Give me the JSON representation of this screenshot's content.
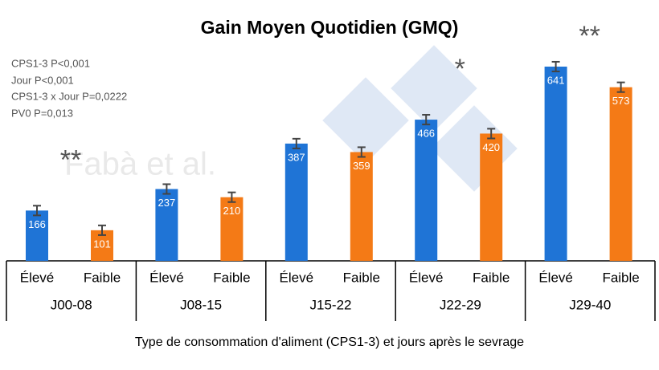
{
  "chart_data": {
    "type": "bar",
    "title": "Gain Moyen Quotidien (GMQ)",
    "x_label": "Type de consommation d'aliment (CPS1-3) et jours après le sevrage",
    "notes": [
      "CPS1-3 P<0,001",
      "Jour P<0,001",
      "CPS1-3 x Jour P=0,0222",
      "PV0 P=0,013"
    ],
    "watermark": "Fabà et al.",
    "categories": [
      "J00-08",
      "J08-15",
      "J15-22",
      "J22-29",
      "J29-40"
    ],
    "annotations": [
      "**",
      null,
      null,
      "*",
      "**"
    ],
    "series": [
      {
        "name": "Élevé",
        "color": "#1f74d6",
        "values": [
          166,
          237,
          387,
          466,
          641
        ],
        "errors": [
          16,
          16,
          16,
          16,
          16
        ]
      },
      {
        "name": "Faible",
        "color": "#f47a16",
        "values": [
          101,
          210,
          359,
          420,
          573
        ],
        "errors": [
          16,
          16,
          16,
          16,
          16
        ]
      }
    ]
  }
}
